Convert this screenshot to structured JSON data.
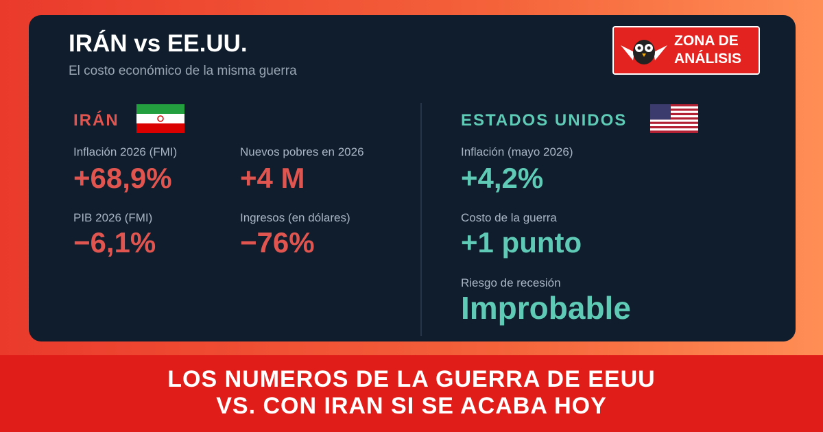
{
  "header": {
    "title": "IRÁN vs EE.UU.",
    "subtitle": "El costo económico de la misma guerra"
  },
  "logo": {
    "line1": "ZONA DE",
    "line2": "ANÁLISIS"
  },
  "iran": {
    "heading": "IRÁN",
    "stats": [
      {
        "label": "Inflación 2026 (FMI)",
        "value": "+68,9%"
      },
      {
        "label": "Nuevos pobres en 2026",
        "value": "+4 M"
      },
      {
        "label": "PIB 2026 (FMI)",
        "value": "−6,1%"
      },
      {
        "label": "Ingresos (en dólares)",
        "value": "−76%"
      }
    ]
  },
  "usa": {
    "heading": "ESTADOS UNIDOS",
    "stats": [
      {
        "label": "Inflación (mayo 2026)",
        "value": "+4,2%"
      },
      {
        "label": "Costo de la guerra",
        "value": "+1 punto"
      },
      {
        "label": "Riesgo de recesión",
        "value": "Improbable"
      }
    ]
  },
  "banner": {
    "line1": "LOS NUMEROS DE LA GUERRA DE EEUU",
    "line2": "VS. CON IRAN SI SE ACABA HOY"
  }
}
